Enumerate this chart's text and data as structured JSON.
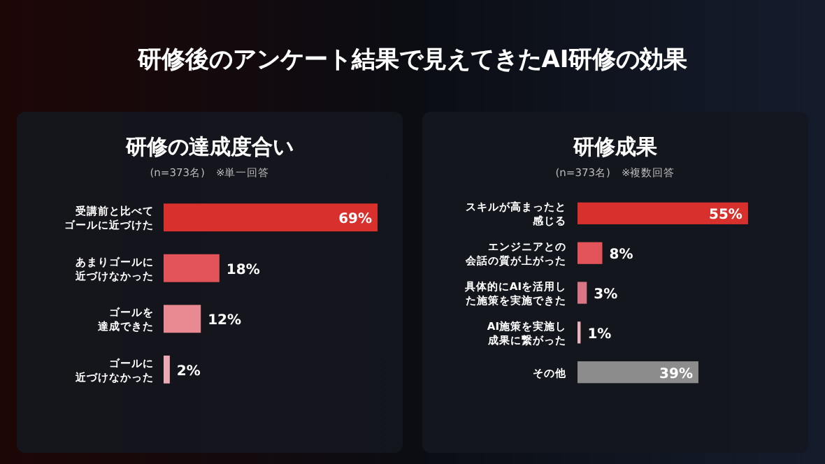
{
  "chart_data": [
    {
      "type": "bar",
      "orientation": "horizontal",
      "title": "研修の達成度合い",
      "subtitle": "(n=373名)　※単一回答",
      "annotations": [
        "研修後のアンケート結果で見えてきたAI研修の効果"
      ],
      "categories": [
        "受講前と比べてゴールに近づけた",
        "あまりゴールに近づけなかった",
        "ゴールを達成できた",
        "ゴールに近づけなかった"
      ],
      "values": [
        69,
        18,
        12,
        2
      ],
      "value_labels": [
        "69%",
        "18%",
        "12%",
        "2%"
      ],
      "colors": [
        "#d8302c",
        "#e2545a",
        "#e98a92",
        "#e9aab2"
      ]
    },
    {
      "type": "bar",
      "orientation": "horizontal",
      "title": "研修成果",
      "subtitle": "(n=373名)　※複数回答",
      "categories": [
        "スキルが高まったと感じる",
        "エンジニアとの会話の質が上がった",
        "具体的にAIを活用した施策を実施できた",
        "AI施策を実施し成果に繋がった",
        "その他"
      ],
      "values": [
        55,
        8,
        3,
        1,
        39
      ],
      "value_labels": [
        "55%",
        "8%",
        "3%",
        "1%",
        "39%"
      ],
      "colors": [
        "#d8302c",
        "#e2545a",
        "#d97584",
        "#e9b4bc",
        "#8c8c8c"
      ]
    }
  ]
}
